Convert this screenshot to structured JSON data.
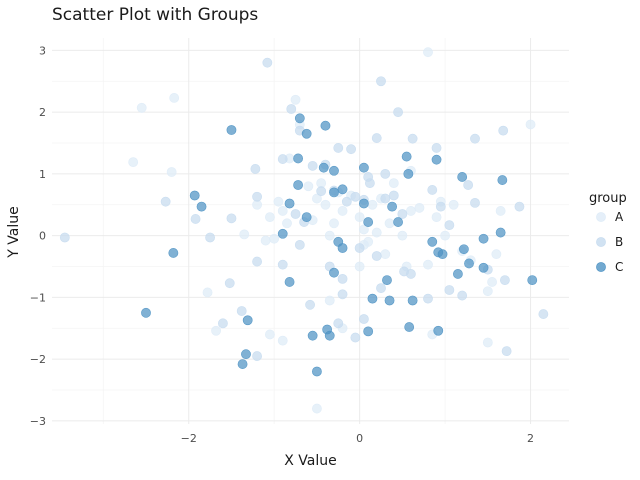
{
  "chart_data": {
    "type": "scatter",
    "title": "Scatter Plot with Groups",
    "xlabel": "X Value",
    "ylabel": "Y Value",
    "xlim": [
      -3.6,
      2.45
    ],
    "ylim": [
      -3.05,
      3.2
    ],
    "xticks": [
      -2,
      0,
      2
    ],
    "yticks": [
      -3,
      -2,
      -1,
      0,
      1,
      2,
      3
    ],
    "xtick_labels": [
      "−2",
      "0",
      "2"
    ],
    "ytick_labels": [
      "−3",
      "−2",
      "−1",
      "0",
      "1",
      "2",
      "3"
    ],
    "grid": true,
    "legend": {
      "title": "group",
      "position": "right"
    },
    "series": [
      {
        "name": "A",
        "color": "#deebf7",
        "points": [
          [
            -2.55,
            2.07
          ],
          [
            -2.17,
            2.23
          ],
          [
            -2.65,
            1.19
          ],
          [
            -2.2,
            1.03
          ],
          [
            -1.78,
            -0.92
          ],
          [
            -1.68,
            -1.54
          ],
          [
            -1.35,
            0.02
          ],
          [
            -1.1,
            -0.08
          ],
          [
            -1.2,
            0.5
          ],
          [
            -1.05,
            0.3
          ],
          [
            -0.95,
            0.55
          ],
          [
            -0.9,
            0.4
          ],
          [
            -0.85,
            0.2
          ],
          [
            -0.82,
            1.25
          ],
          [
            -0.75,
            2.2
          ],
          [
            -0.7,
            1.8
          ],
          [
            -0.6,
            0.8
          ],
          [
            -0.55,
            0.25
          ],
          [
            -0.5,
            0.6
          ],
          [
            -0.45,
            0.85
          ],
          [
            -0.4,
            0.5
          ],
          [
            -0.35,
            0.0
          ],
          [
            -0.3,
            0.2
          ],
          [
            -0.25,
            0.7
          ],
          [
            -0.2,
            0.4
          ],
          [
            -0.1,
            0.65
          ],
          [
            0.0,
            0.3
          ],
          [
            0.05,
            0.1
          ],
          [
            0.1,
            -0.1
          ],
          [
            0.15,
            0.5
          ],
          [
            0.2,
            0.05
          ],
          [
            0.25,
            0.6
          ],
          [
            0.3,
            -0.3
          ],
          [
            0.35,
            0.2
          ],
          [
            0.4,
            0.85
          ],
          [
            0.5,
            0.0
          ],
          [
            0.55,
            -0.5
          ],
          [
            0.6,
            0.4
          ],
          [
            0.7,
            0.45
          ],
          [
            0.8,
            -0.47
          ],
          [
            0.9,
            0.3
          ],
          [
            0.95,
            0.55
          ],
          [
            1.0,
            0.0
          ],
          [
            1.1,
            0.5
          ],
          [
            1.2,
            -0.25
          ],
          [
            1.3,
            -0.4
          ],
          [
            1.5,
            -0.9
          ],
          [
            1.55,
            -0.75
          ],
          [
            1.6,
            -0.3
          ],
          [
            1.65,
            0.4
          ],
          [
            2.0,
            1.8
          ],
          [
            1.5,
            -1.73
          ],
          [
            0.85,
            -1.6
          ],
          [
            0.8,
            2.97
          ],
          [
            -0.5,
            -2.8
          ],
          [
            -0.9,
            -1.7
          ],
          [
            -1.05,
            -1.6
          ],
          [
            -0.2,
            -1.5
          ],
          [
            -0.35,
            -1.05
          ],
          [
            0.0,
            -0.5
          ],
          [
            -1.0,
            -0.05
          ],
          [
            0.6,
            1.05
          ],
          [
            0.05,
            -0.15
          ]
        ]
      },
      {
        "name": "B",
        "color": "#c6dbef",
        "points": [
          [
            -3.45,
            -0.03
          ],
          [
            -2.27,
            0.55
          ],
          [
            -1.92,
            0.27
          ],
          [
            -1.75,
            -0.03
          ],
          [
            -1.5,
            0.28
          ],
          [
            -1.52,
            -0.77
          ],
          [
            -1.38,
            -1.22
          ],
          [
            -1.6,
            -1.42
          ],
          [
            -1.2,
            -1.95
          ],
          [
            -1.2,
            -0.42
          ],
          [
            -1.2,
            0.63
          ],
          [
            -1.22,
            1.08
          ],
          [
            -1.08,
            2.8
          ],
          [
            -0.9,
            1.24
          ],
          [
            -0.9,
            -0.47
          ],
          [
            -0.8,
            2.05
          ],
          [
            -0.7,
            1.7
          ],
          [
            -0.75,
            0.35
          ],
          [
            -0.65,
            0.22
          ],
          [
            -0.58,
            -1.12
          ],
          [
            -0.55,
            1.13
          ],
          [
            -0.4,
            1.15
          ],
          [
            -0.45,
            0.72
          ],
          [
            -0.3,
            0.73
          ],
          [
            -0.25,
            1.42
          ],
          [
            -0.15,
            0.55
          ],
          [
            -0.1,
            1.4
          ],
          [
            -0.05,
            0.63
          ],
          [
            0.0,
            -0.2
          ],
          [
            0.05,
            0.58
          ],
          [
            0.1,
            0.95
          ],
          [
            0.12,
            0.85
          ],
          [
            0.2,
            -0.33
          ],
          [
            0.2,
            1.58
          ],
          [
            0.25,
            2.5
          ],
          [
            0.3,
            0.6
          ],
          [
            0.3,
            1.0
          ],
          [
            0.4,
            0.65
          ],
          [
            0.45,
            2.0
          ],
          [
            0.5,
            0.35
          ],
          [
            0.52,
            -0.58
          ],
          [
            0.6,
            -0.62
          ],
          [
            0.62,
            1.57
          ],
          [
            0.8,
            -1.02
          ],
          [
            0.85,
            0.74
          ],
          [
            0.9,
            1.42
          ],
          [
            0.95,
            0.47
          ],
          [
            1.05,
            -0.88
          ],
          [
            1.05,
            0.17
          ],
          [
            1.2,
            -0.97
          ],
          [
            1.27,
            0.82
          ],
          [
            1.35,
            0.53
          ],
          [
            1.35,
            1.57
          ],
          [
            1.5,
            -0.55
          ],
          [
            1.7,
            -0.72
          ],
          [
            1.72,
            -1.87
          ],
          [
            1.68,
            1.7
          ],
          [
            1.87,
            0.47
          ],
          [
            2.15,
            -1.27
          ],
          [
            -0.2,
            -0.95
          ],
          [
            -0.35,
            -0.5
          ],
          [
            -0.7,
            -0.15
          ],
          [
            -0.2,
            -0.7
          ],
          [
            0.05,
            -1.35
          ],
          [
            -0.05,
            -1.65
          ],
          [
            -0.25,
            -1.42
          ],
          [
            0.25,
            -0.85
          ]
        ]
      },
      {
        "name": "C",
        "color": "#4f93c4",
        "points": [
          [
            -2.5,
            -1.25
          ],
          [
            -2.18,
            -0.28
          ],
          [
            -1.93,
            0.65
          ],
          [
            -1.85,
            0.47
          ],
          [
            -1.5,
            1.71
          ],
          [
            -1.31,
            -1.37
          ],
          [
            -1.33,
            -1.92
          ],
          [
            -1.37,
            -2.08
          ],
          [
            -0.9,
            0.03
          ],
          [
            -0.82,
            0.52
          ],
          [
            -0.82,
            -0.75
          ],
          [
            -0.72,
            0.82
          ],
          [
            -0.72,
            1.25
          ],
          [
            -0.7,
            1.9
          ],
          [
            -0.62,
            1.65
          ],
          [
            -0.62,
            0.3
          ],
          [
            -0.55,
            -1.62
          ],
          [
            -0.5,
            -2.2
          ],
          [
            -0.42,
            1.1
          ],
          [
            -0.4,
            1.78
          ],
          [
            -0.38,
            -1.52
          ],
          [
            -0.35,
            -1.62
          ],
          [
            -0.3,
            -0.6
          ],
          [
            -0.3,
            0.7
          ],
          [
            -0.3,
            1.05
          ],
          [
            -0.25,
            -0.1
          ],
          [
            -0.2,
            -0.2
          ],
          [
            -0.2,
            0.75
          ],
          [
            0.05,
            1.1
          ],
          [
            0.05,
            0.52
          ],
          [
            0.1,
            0.22
          ],
          [
            0.1,
            -1.55
          ],
          [
            0.15,
            -1.02
          ],
          [
            0.32,
            -0.72
          ],
          [
            0.35,
            -1.05
          ],
          [
            0.38,
            0.47
          ],
          [
            0.45,
            0.22
          ],
          [
            0.55,
            1.28
          ],
          [
            0.57,
            1.0
          ],
          [
            0.58,
            -1.48
          ],
          [
            0.62,
            -1.05
          ],
          [
            0.85,
            -0.1
          ],
          [
            0.9,
            1.23
          ],
          [
            0.92,
            -1.54
          ],
          [
            0.92,
            -0.27
          ],
          [
            0.97,
            -0.3
          ],
          [
            1.15,
            -0.62
          ],
          [
            1.2,
            0.95
          ],
          [
            1.22,
            -0.22
          ],
          [
            1.28,
            -0.45
          ],
          [
            1.45,
            -0.05
          ],
          [
            1.45,
            -0.52
          ],
          [
            1.65,
            0.05
          ],
          [
            1.67,
            0.9
          ],
          [
            2.02,
            -0.72
          ]
        ]
      }
    ]
  }
}
